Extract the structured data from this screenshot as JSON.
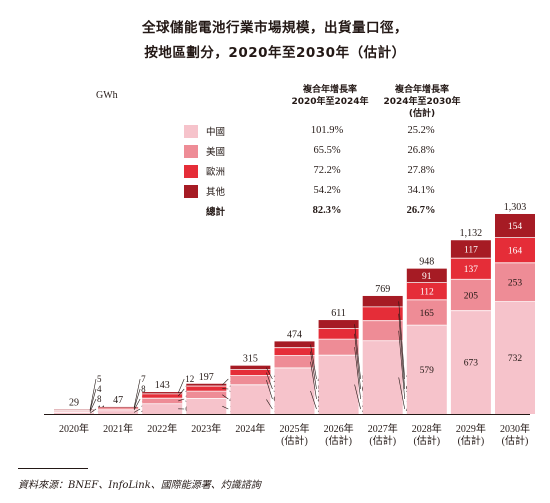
{
  "header": {
    "title_line1": "全球儲能電池行業市場規模，出貨量口徑，",
    "title_line2": "按地區劃分，2020年至2030年（估計）"
  },
  "unit": "GWh",
  "table": {
    "col1_line1": "複合年增長率",
    "col1_line2": "2020年至2024年",
    "col2_line1": "複合年增長率",
    "col2_line2": "2024年至2030年",
    "col2_line3": "(估計)",
    "rows": [
      {
        "name": "中國",
        "cagr1": "101.9%",
        "cagr2": "25.2%"
      },
      {
        "name": "美國",
        "cagr1": "65.5%",
        "cagr2": "26.8%"
      },
      {
        "name": "歐洲",
        "cagr1": "72.2%",
        "cagr2": "27.8%"
      },
      {
        "name": "其他",
        "cagr1": "54.2%",
        "cagr2": "34.1%"
      },
      {
        "name": "總計",
        "cagr1": "82.3%",
        "cagr2": "26.7%"
      }
    ]
  },
  "colors": {
    "china": "#f6c3cb",
    "us": "#ee8c96",
    "europe": "#e52d38",
    "other": "#a61b24",
    "axis": "#231815"
  },
  "chart_data": {
    "type": "bar",
    "stacked": true,
    "categories": [
      [
        "2020年"
      ],
      [
        "2021年"
      ],
      [
        "2022年"
      ],
      [
        "2023年"
      ],
      [
        "2024年"
      ],
      [
        "2025年",
        "(估計)"
      ],
      [
        "2026年",
        "(估計)"
      ],
      [
        "2027年",
        "(估計)"
      ],
      [
        "2028年",
        "(估計)"
      ],
      [
        "2029年",
        "(估計)"
      ],
      [
        "2030年",
        "(估計)"
      ]
    ],
    "series": [
      {
        "name": "中國",
        "values": [
          11,
          21,
          67,
          102,
          190,
          300,
          383,
          477,
          579,
          673,
          732
        ]
      },
      {
        "name": "美國",
        "values": [
          8,
          10,
          36,
          47,
          61,
          81,
          105,
          131,
          165,
          205,
          253
        ]
      },
      {
        "name": "歐洲",
        "values": [
          4,
          8,
          28,
          33,
          38,
          51,
          69,
          90,
          112,
          137,
          164
        ]
      },
      {
        "name": "其他",
        "values": [
          5,
          7,
          12,
          15,
          26,
          41,
          55,
          71,
          91,
          117,
          154
        ]
      }
    ],
    "totals": [
      "29",
      "47",
      "143",
      "197",
      "315",
      "474",
      "611",
      "769",
      "948",
      "1,132",
      "1,303"
    ],
    "ylabel": "GWh",
    "ylim": [
      0,
      1303
    ]
  },
  "footer": {
    "source": "資料來源：BNEF、InfoLink、國際能源署、灼識諮詢"
  }
}
